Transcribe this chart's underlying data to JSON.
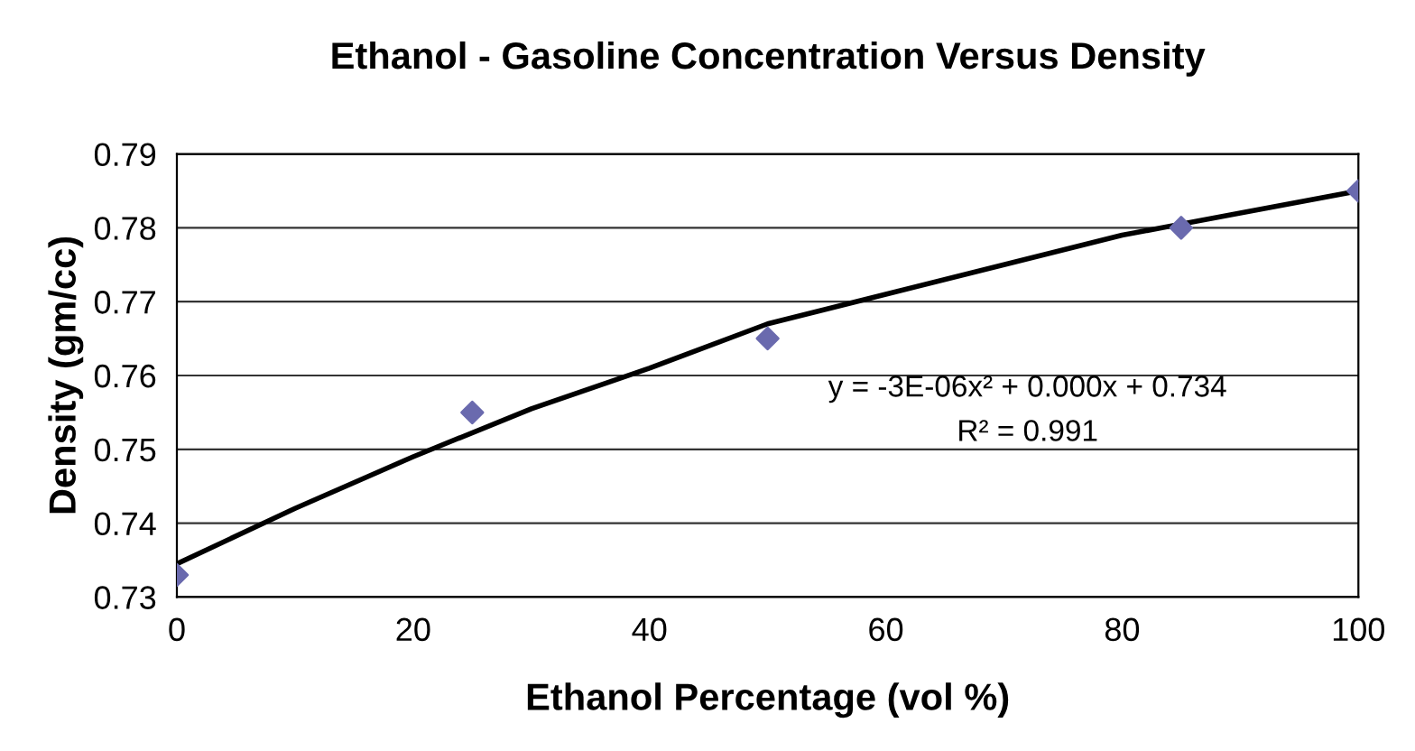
{
  "chart_data": {
    "type": "scatter",
    "title": "Ethanol - Gasoline Concentration Versus Density",
    "xlabel": "Ethanol Percentage (vol %)",
    "ylabel": "Density (gm/cc)",
    "x": [
      0,
      25,
      50,
      85,
      100
    ],
    "series": [
      {
        "color": "#6a6aae",
        "marker": "diamond",
        "values": [
          0.733,
          0.755,
          0.765,
          0.78,
          0.785
        ]
      },
      {
        "type": "line",
        "color": "#000000",
        "marker": "none",
        "line_style": "solid",
        "x": [
          0,
          10,
          20,
          30,
          40,
          50,
          60,
          70,
          80,
          90,
          100
        ],
        "values": [
          0.7345,
          0.742,
          0.749,
          0.7555,
          0.761,
          0.767,
          0.771,
          0.775,
          0.779,
          0.782,
          0.785
        ]
      }
    ],
    "annotations": [
      "y = -3E-06x² + 0.000x + 0.734",
      "R² = 0.991"
    ],
    "xlim": [
      0,
      100
    ],
    "xticks": [
      0,
      20,
      40,
      60,
      80,
      100
    ],
    "ylim": [
      0.73,
      0.79
    ],
    "yticks": [
      0.73,
      0.74,
      0.75,
      0.76,
      0.77,
      0.78,
      0.79
    ],
    "grid": "y",
    "legend": false
  }
}
